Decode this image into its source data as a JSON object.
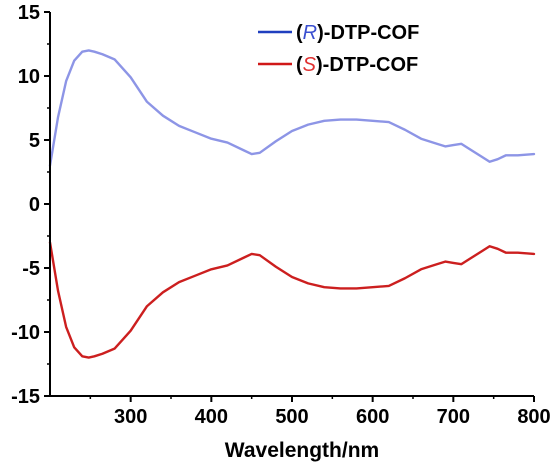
{
  "chart_data": {
    "type": "line",
    "title": "",
    "xlabel": "Wavelength/nm",
    "ylabel": "",
    "xlim": [
      200,
      800
    ],
    "ylim": [
      -15,
      15
    ],
    "x_ticks": [
      300,
      400,
      500,
      600,
      700,
      800
    ],
    "y_ticks": [
      15,
      10,
      5,
      0,
      -5,
      -10,
      -15
    ],
    "grid": false,
    "legend_position": "top-right",
    "series": [
      {
        "name": "(R)-DTP-COF",
        "legend_prefix": "(",
        "legend_italic": "R",
        "legend_suffix": ")-DTP-COF",
        "legend_color": "#1f3fbf",
        "italic_color": "#3a4fd0",
        "line_color": "#8d95e6",
        "points": [
          [
            200,
            3.0
          ],
          [
            210,
            6.8
          ],
          [
            220,
            9.6
          ],
          [
            230,
            11.2
          ],
          [
            240,
            11.9
          ],
          [
            248,
            12.0
          ],
          [
            255,
            11.9
          ],
          [
            265,
            11.7
          ],
          [
            280,
            11.3
          ],
          [
            300,
            9.9
          ],
          [
            320,
            8.0
          ],
          [
            340,
            6.9
          ],
          [
            360,
            6.1
          ],
          [
            380,
            5.6
          ],
          [
            400,
            5.1
          ],
          [
            420,
            4.8
          ],
          [
            440,
            4.2
          ],
          [
            450,
            3.9
          ],
          [
            460,
            4.0
          ],
          [
            480,
            4.9
          ],
          [
            500,
            5.7
          ],
          [
            520,
            6.2
          ],
          [
            540,
            6.5
          ],
          [
            560,
            6.6
          ],
          [
            580,
            6.6
          ],
          [
            600,
            6.5
          ],
          [
            620,
            6.4
          ],
          [
            640,
            5.8
          ],
          [
            660,
            5.1
          ],
          [
            680,
            4.7
          ],
          [
            690,
            4.5
          ],
          [
            700,
            4.6
          ],
          [
            710,
            4.7
          ],
          [
            720,
            4.3
          ],
          [
            735,
            3.7
          ],
          [
            745,
            3.3
          ],
          [
            755,
            3.5
          ],
          [
            765,
            3.8
          ],
          [
            780,
            3.8
          ],
          [
            800,
            3.9
          ]
        ]
      },
      {
        "name": "(S)-DTP-COF",
        "legend_prefix": "(",
        "legend_italic": "S",
        "legend_suffix": ")-DTP-COF",
        "legend_color": "#d01818",
        "italic_color": "#e03030",
        "line_color": "#cc1f1f",
        "points": [
          [
            200,
            -3.0
          ],
          [
            210,
            -6.8
          ],
          [
            220,
            -9.6
          ],
          [
            230,
            -11.2
          ],
          [
            240,
            -11.9
          ],
          [
            248,
            -12.0
          ],
          [
            255,
            -11.9
          ],
          [
            265,
            -11.7
          ],
          [
            280,
            -11.3
          ],
          [
            300,
            -9.9
          ],
          [
            320,
            -8.0
          ],
          [
            340,
            -6.9
          ],
          [
            360,
            -6.1
          ],
          [
            380,
            -5.6
          ],
          [
            400,
            -5.1
          ],
          [
            420,
            -4.8
          ],
          [
            440,
            -4.2
          ],
          [
            450,
            -3.9
          ],
          [
            460,
            -4.0
          ],
          [
            480,
            -4.9
          ],
          [
            500,
            -5.7
          ],
          [
            520,
            -6.2
          ],
          [
            540,
            -6.5
          ],
          [
            560,
            -6.6
          ],
          [
            580,
            -6.6
          ],
          [
            600,
            -6.5
          ],
          [
            620,
            -6.4
          ],
          [
            640,
            -5.8
          ],
          [
            660,
            -5.1
          ],
          [
            680,
            -4.7
          ],
          [
            690,
            -4.5
          ],
          [
            700,
            -4.6
          ],
          [
            710,
            -4.7
          ],
          [
            720,
            -4.3
          ],
          [
            735,
            -3.7
          ],
          [
            745,
            -3.3
          ],
          [
            755,
            -3.5
          ],
          [
            765,
            -3.8
          ],
          [
            780,
            -3.8
          ],
          [
            800,
            -3.9
          ]
        ]
      }
    ]
  }
}
